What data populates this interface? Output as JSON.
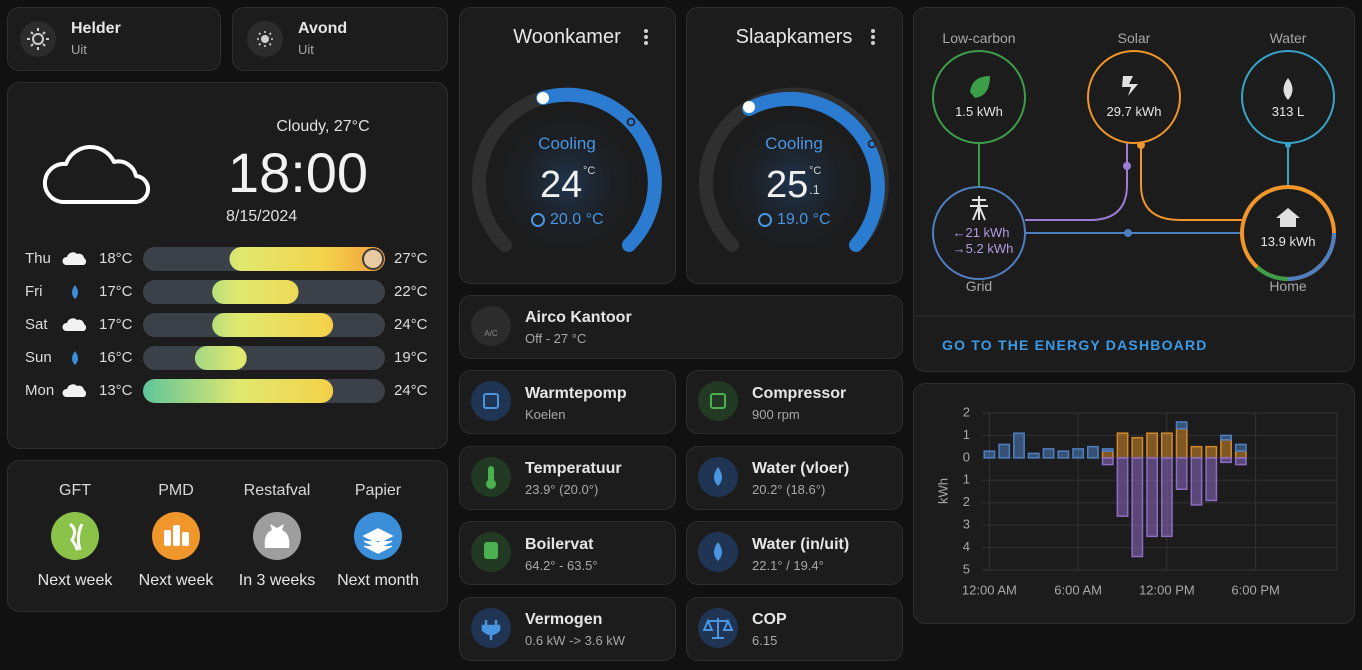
{
  "scenes": [
    {
      "name": "Helder",
      "state": "Uit"
    },
    {
      "name": "Avond",
      "state": "Uit"
    }
  ],
  "weather": {
    "condition": "Cloudy, 27°C",
    "time": "18:00",
    "date": "8/15/2024",
    "forecast": [
      {
        "day": "Thu",
        "icon": "cloudy",
        "low": 18,
        "low_label": "18°C",
        "high": 27,
        "high_label": "27°C"
      },
      {
        "day": "Fri",
        "icon": "rain",
        "low": 17,
        "low_label": "17°C",
        "high": 22,
        "high_label": "22°C"
      },
      {
        "day": "Sat",
        "icon": "cloudy",
        "low": 17,
        "low_label": "17°C",
        "high": 24,
        "high_label": "24°C"
      },
      {
        "day": "Sun",
        "icon": "rain",
        "low": 16,
        "low_label": "16°C",
        "high": 19,
        "high_label": "19°C"
      },
      {
        "day": "Mon",
        "icon": "cloudy",
        "low": 13,
        "low_label": "13°C",
        "high": 24,
        "high_label": "24°C"
      }
    ]
  },
  "waste": [
    {
      "name": "GFT",
      "when": "Next week"
    },
    {
      "name": "PMD",
      "when": "Next week"
    },
    {
      "name": "Restafval",
      "when": "In 3 weeks"
    },
    {
      "name": "Papier",
      "when": "Next month"
    }
  ],
  "thermostats": [
    {
      "name": "Woonkamer",
      "mode": "Cooling",
      "target": "24",
      "unit": "°C",
      "current": "20.0 °C"
    },
    {
      "name": "Slaapkamers",
      "mode": "Cooling",
      "target": "25",
      "target_decimal": ".1",
      "unit": "°C",
      "current": "19.0 °C"
    }
  ],
  "airco": {
    "name": "Airco Kantoor",
    "state": "Off - 27 °C",
    "icon_label": "A/C"
  },
  "tiles": [
    {
      "name": "Warmtepomp",
      "state": "Koelen"
    },
    {
      "name": "Compressor",
      "state": "900 rpm"
    },
    {
      "name": "Temperatuur",
      "state": "23.9° (20.0°)"
    },
    {
      "name": "Water (vloer)",
      "state": "20.2° (18.6°)"
    },
    {
      "name": "Boilervat",
      "state": "64.2° - 63.5°"
    },
    {
      "name": "Water (in/uit)",
      "state": "22.1° / 19.4°"
    },
    {
      "name": "Vermogen",
      "state": "0.6 kW -> 3.6 kW"
    },
    {
      "name": "COP",
      "state": "6.15"
    }
  ],
  "energy_flow": {
    "low_carbon": {
      "label": "Low-carbon",
      "value": "1.5 kWh"
    },
    "solar": {
      "label": "Solar",
      "value": "29.7 kWh"
    },
    "water": {
      "label": "Water",
      "value": "313 L"
    },
    "grid": {
      "label": "Grid",
      "import": "←21 kWh",
      "export": "→5.2 kWh"
    },
    "home": {
      "label": "Home",
      "value": "13.9 kWh"
    },
    "link": "GO TO THE ENERGY DASHBOARD"
  },
  "energy_chart": {
    "type": "bar",
    "y_label": "kWh",
    "x": [
      0,
      1,
      2,
      3,
      4,
      5,
      6,
      7,
      8,
      9,
      10,
      11,
      12,
      13,
      14,
      15,
      16,
      17
    ],
    "xlim": [
      -0.5,
      23.5
    ],
    "xticks": [
      {
        "value": 0,
        "label": "12:00 AM"
      },
      {
        "value": 6,
        "label": "6:00 AM"
      },
      {
        "value": 12,
        "label": "12:00 PM"
      },
      {
        "value": 18,
        "label": "6:00 PM"
      }
    ],
    "ylim": [
      -5,
      2
    ],
    "yticks": [
      2,
      1,
      0,
      {
        "value": -1,
        "label": "1"
      },
      {
        "value": -2,
        "label": "2"
      },
      {
        "value": -3,
        "label": "3"
      },
      {
        "value": -4,
        "label": "4"
      },
      {
        "value": -5,
        "label": "5"
      }
    ],
    "grid": true,
    "series": [
      {
        "color": "#d48a2c",
        "values": [
          0,
          0,
          0,
          0,
          0,
          0,
          0,
          0,
          0.3,
          1.1,
          0.9,
          1.1,
          1.1,
          1.3,
          0.5,
          0.5,
          0.8,
          0.3
        ]
      },
      {
        "color": "#4f7fc0",
        "values": [
          0.3,
          0.6,
          1.1,
          0.2,
          0.4,
          0.3,
          0.4,
          0.5,
          0.1,
          0,
          0,
          0,
          0,
          0.3,
          0,
          0,
          0.2,
          0.3
        ]
      },
      {
        "color": "#8d6cc4",
        "values": [
          0,
          0,
          0,
          0,
          0,
          0,
          0,
          0,
          -0.3,
          -2.6,
          -4.4,
          -3.5,
          -3.5,
          -1.4,
          -2.1,
          -1.9,
          -0.2,
          -0.3
        ]
      }
    ]
  }
}
